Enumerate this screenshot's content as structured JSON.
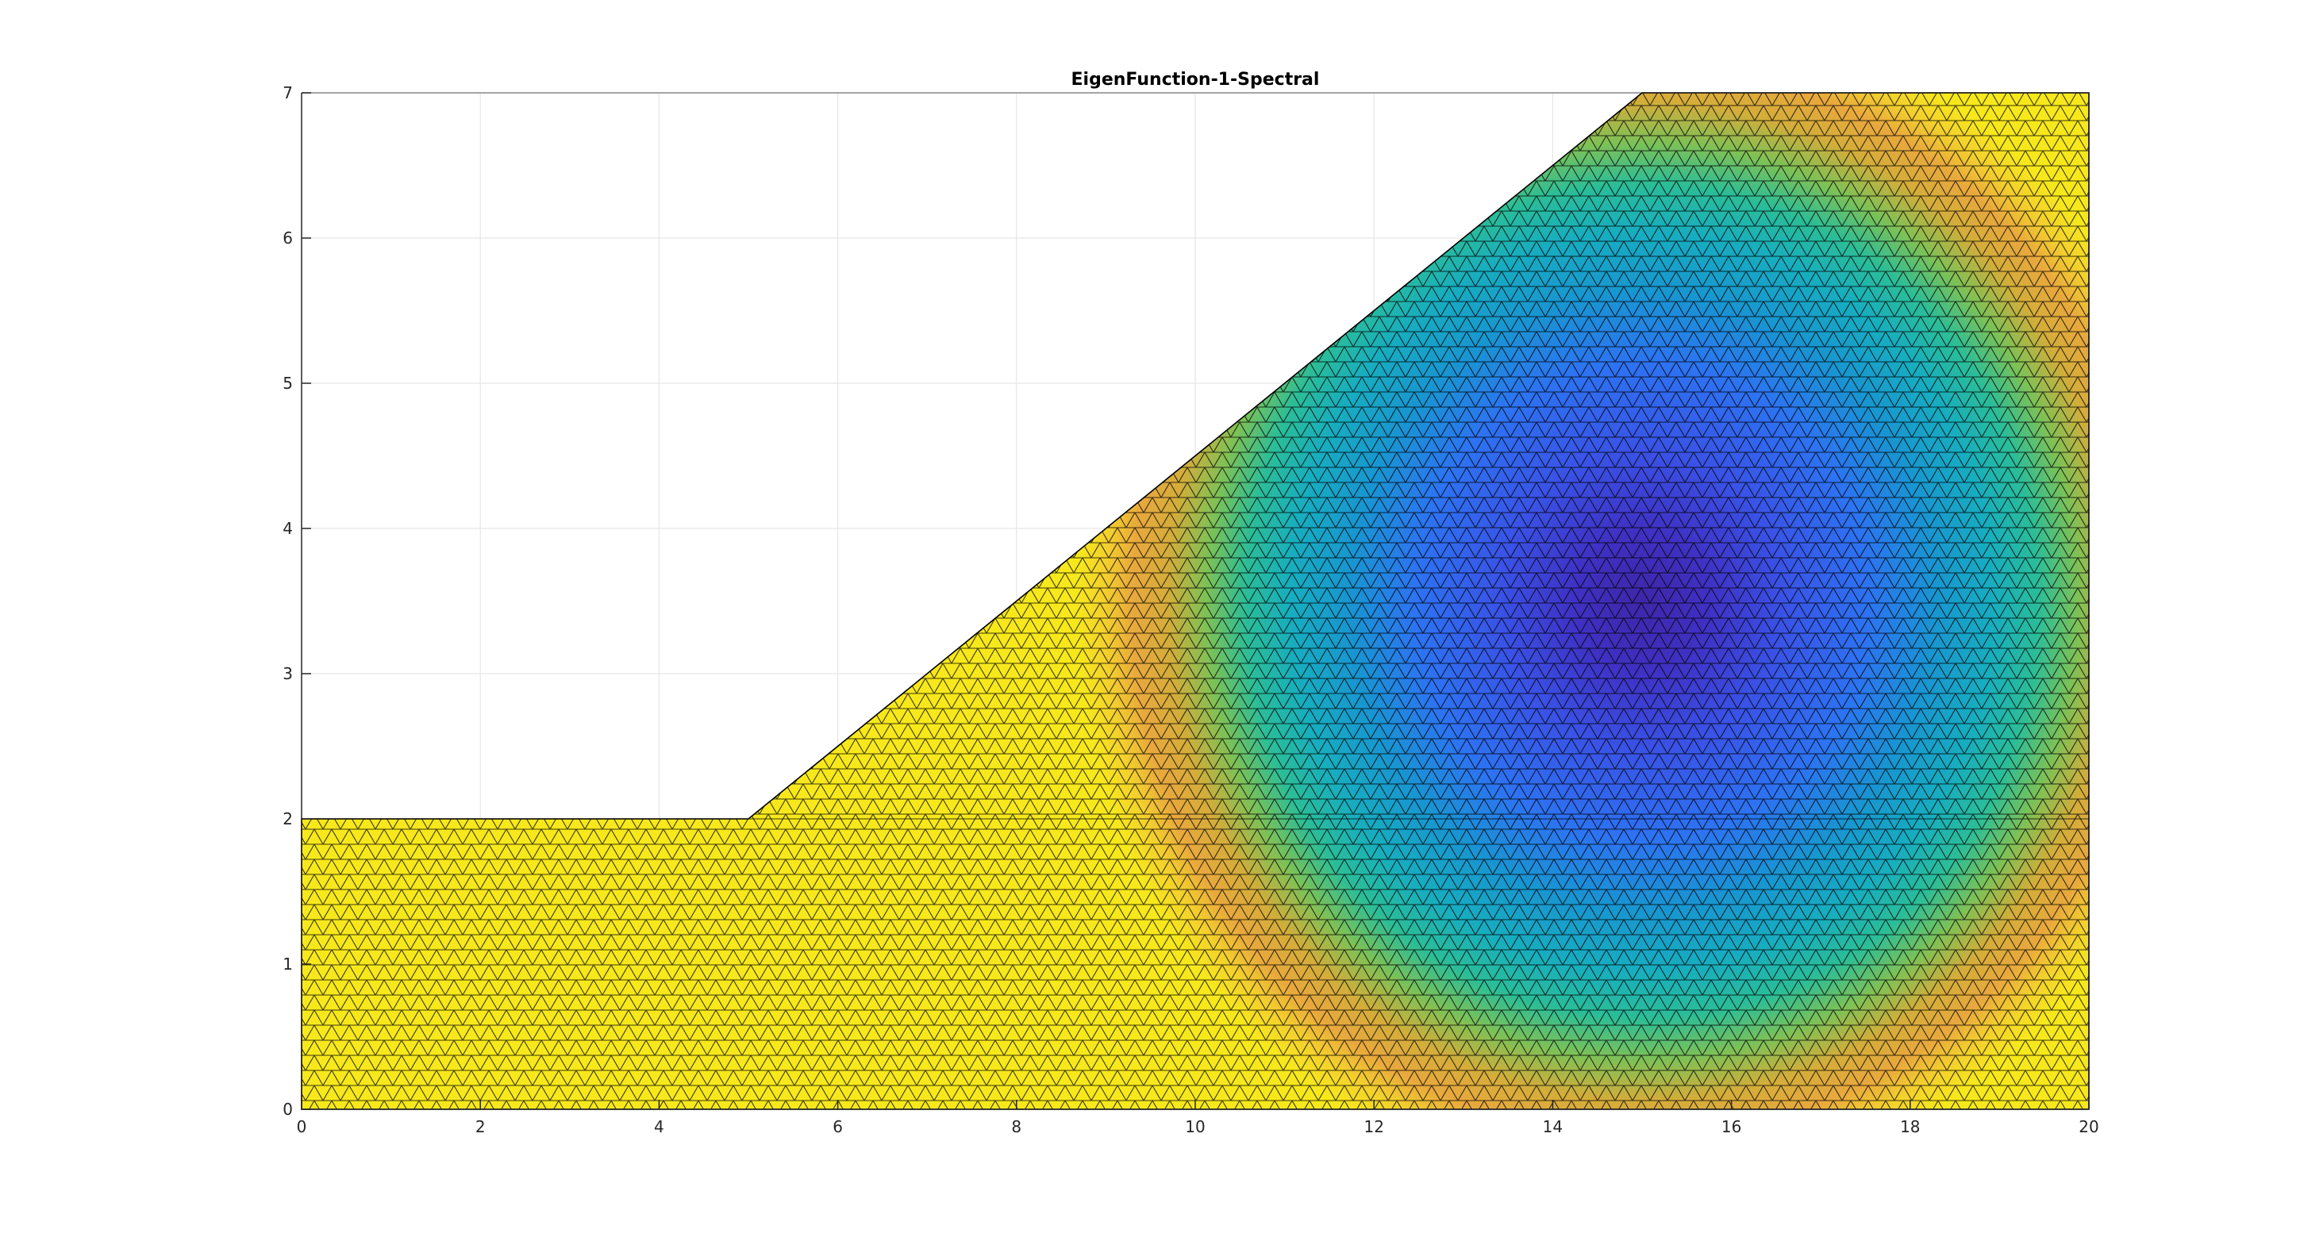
{
  "chart_data": {
    "type": "heatmap",
    "subtype": "triangular-mesh-surface",
    "title": "EigenFunction-1-Spectral",
    "xlabel": "",
    "ylabel": "",
    "xlim": [
      0,
      20
    ],
    "ylim": [
      0,
      7
    ],
    "xticks": [
      "0",
      "2",
      "4",
      "6",
      "8",
      "10",
      "12",
      "14",
      "16",
      "18",
      "20"
    ],
    "yticks": [
      "0",
      "1",
      "2",
      "3",
      "4",
      "5",
      "6",
      "7"
    ],
    "xtick_values": [
      0,
      2,
      4,
      6,
      8,
      10,
      12,
      14,
      16,
      18,
      20
    ],
    "ytick_values": [
      0,
      1,
      2,
      3,
      4,
      5,
      6,
      7
    ],
    "grid": true,
    "colormap": "parula",
    "colormap_colors": [
      "#3e26a8",
      "#4148e0",
      "#2f6af7",
      "#1f8ed5",
      "#10aac6",
      "#2bbc9e",
      "#7cc159",
      "#c8b93a",
      "#e0a63c",
      "#f0c23a",
      "#f5e126",
      "#f9fb0e"
    ],
    "mesh_edge_color": "#000000",
    "domain_boundary": [
      [
        0,
        0
      ],
      [
        20,
        0
      ],
      [
        20,
        7
      ],
      [
        15,
        7
      ],
      [
        5,
        2
      ],
      [
        0,
        2
      ]
    ],
    "field_minimum_location": [
      15,
      3.5
    ],
    "field_description_values": {
      "center": [
        15,
        3.5
      ],
      "outer_ring_color": "orange",
      "inner_color": "dark-blue"
    }
  }
}
